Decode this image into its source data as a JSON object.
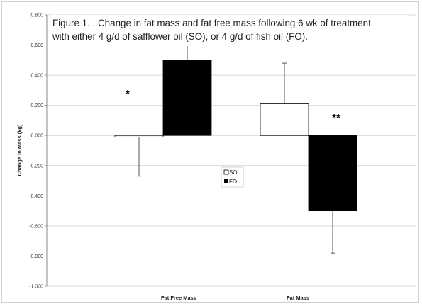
{
  "caption": {
    "line1": "Figure 1. . Change in fat mass and fat free mass following 6 wk of treatment",
    "line2": "with either 4 g/d of safflower oil (SO), or 4 g/d of fish oil (FO)."
  },
  "chart_data": {
    "type": "bar",
    "title": "Figure 1. . Change in fat mass and fat free mass following 6 wk of treatment with either 4 g/d of safflower oil (SO), or 4 g/d of fish oil (FO).",
    "ylabel": "Change in Mass (kg)",
    "xlabel": "",
    "ylim": [
      -1.0,
      0.8
    ],
    "yticks": [
      "0.800",
      "0.600",
      "0.400",
      "0.200",
      "0.000",
      "-0.200",
      "-0.400",
      "-0.600",
      "-0.800",
      "-1.000"
    ],
    "ytick_values": [
      0.8,
      0.6,
      0.4,
      0.2,
      0.0,
      -0.2,
      -0.4,
      -0.6,
      -0.8,
      -1.0
    ],
    "categories": [
      "Fat Free Mass",
      "Fat Mass"
    ],
    "series": [
      {
        "name": "SO",
        "color": "#ffffff",
        "values": [
          -0.01,
          0.21
        ],
        "error": [
          0.26,
          0.27
        ],
        "error_dir": [
          "down",
          "up"
        ]
      },
      {
        "name": "FO",
        "color": "#000000",
        "values": [
          0.5,
          -0.5
        ],
        "error": [
          0.11,
          0.28
        ],
        "error_dir": [
          "up",
          "down"
        ]
      }
    ],
    "annotations": [
      "*",
      "**"
    ],
    "grid": true,
    "legend": "center"
  }
}
